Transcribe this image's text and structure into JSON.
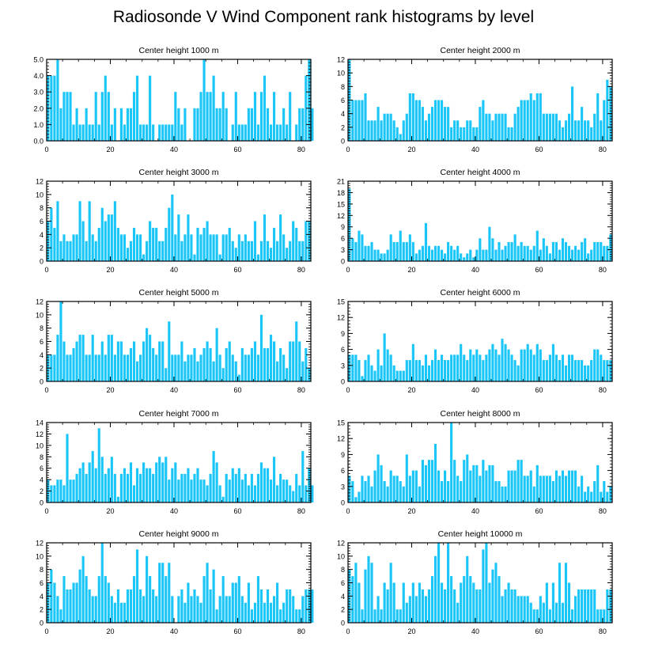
{
  "title": "Radiosonde V Wind Component rank histograms by level",
  "bar_color": "#1ac6f8",
  "chart_data": [
    {
      "type": "bar",
      "title": "Center height 1000 m",
      "xlim": [
        0,
        83
      ],
      "xticks": [
        0,
        20,
        40,
        60,
        80
      ],
      "ylim": [
        0,
        5
      ],
      "yticks": [
        0,
        1,
        2,
        3,
        4,
        5
      ],
      "ytick_labels": [
        "0.0",
        "1.0",
        "2.0",
        "3.0",
        "4.0",
        "5.0"
      ],
      "values": [
        4,
        4,
        4,
        5,
        2,
        3,
        3,
        3,
        1,
        2,
        1,
        1,
        2,
        1,
        1,
        3,
        1,
        3,
        4,
        3,
        1,
        2,
        0,
        2,
        1,
        2,
        2,
        3,
        4,
        1,
        1,
        1,
        4,
        1,
        0,
        1,
        1,
        1,
        1,
        1,
        3,
        2,
        1,
        2,
        0,
        0,
        2,
        2,
        3,
        5,
        3,
        3,
        4,
        2,
        2,
        3,
        2,
        0,
        1,
        3,
        1,
        1,
        1,
        2,
        2,
        3,
        1,
        3,
        4,
        2,
        1,
        3,
        1,
        1,
        2,
        1,
        3,
        0,
        1,
        2,
        2,
        4,
        5,
        2
      ],
      "x": null
    },
    {
      "type": "bar",
      "title": "Center height 2000 m",
      "xlim": [
        0,
        83
      ],
      "xticks": [
        0,
        20,
        40,
        60,
        80
      ],
      "ylim": [
        0,
        12
      ],
      "yticks": [
        0,
        2,
        4,
        6,
        8,
        10,
        12
      ],
      "values": [
        12,
        6,
        6,
        6,
        6,
        7,
        3,
        3,
        3,
        5,
        3,
        4,
        4,
        4,
        3,
        2,
        1,
        3,
        4,
        7,
        7,
        6,
        6,
        5,
        3,
        4,
        5,
        6,
        6,
        6,
        5,
        5,
        2,
        3,
        3,
        2,
        2,
        3,
        3,
        2,
        2,
        5,
        6,
        4,
        4,
        3,
        4,
        4,
        4,
        4,
        2,
        2,
        4,
        5,
        6,
        6,
        6,
        7,
        6,
        7,
        7,
        4,
        4,
        4,
        4,
        4,
        3,
        2,
        3,
        4,
        8,
        3,
        3,
        5,
        3,
        3,
        2,
        4,
        7,
        3,
        6,
        9,
        8
      ],
      "x": null
    },
    {
      "type": "bar",
      "title": "Center height 3000 m",
      "xlim": [
        0,
        83
      ],
      "xticks": [
        0,
        20,
        40,
        60,
        80
      ],
      "ylim": [
        0,
        12
      ],
      "yticks": [
        0,
        2,
        4,
        6,
        8,
        10,
        12
      ],
      "values": [
        6,
        8,
        5,
        9,
        3,
        4,
        3,
        3,
        4,
        4,
        9,
        6,
        3,
        9,
        4,
        3,
        5,
        8,
        6,
        7,
        7,
        9,
        5,
        4,
        4,
        2,
        3,
        5,
        4,
        4,
        1,
        3,
        6,
        5,
        5,
        3,
        3,
        5,
        8,
        10,
        4,
        7,
        3,
        4,
        7,
        4,
        1,
        5,
        4,
        5,
        6,
        4,
        4,
        4,
        1,
        4,
        4,
        5,
        3,
        2,
        4,
        3,
        4,
        3,
        3,
        6,
        1,
        3,
        7,
        3,
        2,
        5,
        3,
        7,
        4,
        2,
        3,
        6,
        5,
        3,
        3,
        6,
        6
      ],
      "x": null
    },
    {
      "type": "bar",
      "title": "Center height 4000 m",
      "xlim": [
        0,
        83
      ],
      "xticks": [
        0,
        20,
        40,
        60,
        80
      ],
      "ylim": [
        0,
        21
      ],
      "yticks": [
        0,
        3,
        6,
        9,
        12,
        15,
        18,
        21
      ],
      "values": [
        19,
        6,
        5,
        8,
        7,
        4,
        4,
        5,
        3,
        3,
        2,
        2,
        3,
        7,
        5,
        5,
        8,
        5,
        5,
        7,
        5,
        2,
        3,
        4,
        10,
        4,
        3,
        4,
        4,
        3,
        2,
        5,
        4,
        3,
        4,
        2,
        1,
        2,
        3,
        1,
        3,
        6,
        3,
        3,
        9,
        6,
        3,
        5,
        3,
        4,
        5,
        5,
        7,
        4,
        5,
        4,
        4,
        3,
        4,
        8,
        3,
        6,
        4,
        2,
        5,
        5,
        3,
        6,
        5,
        4,
        3,
        4,
        3,
        5,
        6,
        2,
        3,
        5,
        5,
        5,
        4,
        4,
        7
      ],
      "x": null
    },
    {
      "type": "bar",
      "title": "Center height 5000 m",
      "xlim": [
        0,
        83
      ],
      "xticks": [
        0,
        20,
        40,
        60,
        80
      ],
      "ylim": [
        0,
        12
      ],
      "yticks": [
        0,
        2,
        4,
        6,
        8,
        10,
        12
      ],
      "values": [
        4,
        4,
        4,
        7,
        12,
        6,
        4,
        4,
        5,
        6,
        7,
        7,
        4,
        4,
        7,
        4,
        4,
        6,
        4,
        7,
        7,
        4,
        6,
        6,
        4,
        4,
        5,
        6,
        3,
        4,
        6,
        8,
        7,
        5,
        4,
        6,
        6,
        2,
        9,
        4,
        4,
        4,
        6,
        3,
        4,
        4,
        5,
        3,
        4,
        5,
        6,
        5,
        3,
        8,
        4,
        2,
        5,
        6,
        4,
        3,
        1,
        5,
        4,
        4,
        5,
        6,
        4,
        10,
        5,
        5,
        7,
        6,
        3,
        5,
        4,
        2,
        6,
        6,
        9,
        6,
        3,
        5,
        2
      ],
      "x": null
    },
    {
      "type": "bar",
      "title": "Center height 6000 m",
      "xlim": [
        0,
        83
      ],
      "xticks": [
        0,
        20,
        40,
        60,
        80
      ],
      "ylim": [
        0,
        15
      ],
      "yticks": [
        0,
        3,
        6,
        9,
        12,
        15
      ],
      "values": [
        5,
        5,
        5,
        4,
        1,
        4,
        5,
        3,
        2,
        6,
        3,
        9,
        6,
        5,
        3,
        2,
        2,
        2,
        4,
        4,
        7,
        4,
        4,
        3,
        5,
        3,
        4,
        6,
        4,
        5,
        4,
        4,
        5,
        5,
        5,
        7,
        5,
        4,
        6,
        5,
        6,
        5,
        4,
        5,
        6,
        7,
        6,
        5,
        8,
        7,
        6,
        5,
        4,
        3,
        6,
        6,
        7,
        6,
        5,
        7,
        6,
        4,
        4,
        5,
        7,
        5,
        4,
        5,
        3,
        5,
        5,
        4,
        4,
        4,
        3,
        3,
        4,
        6,
        6,
        5,
        4,
        4,
        4
      ],
      "x": null
    },
    {
      "type": "bar",
      "title": "Center height 7000 m",
      "xlim": [
        0,
        83
      ],
      "xticks": [
        0,
        20,
        40,
        60,
        80
      ],
      "ylim": [
        0,
        14
      ],
      "yticks": [
        0,
        2,
        4,
        6,
        8,
        10,
        12,
        14
      ],
      "values": [
        4,
        3,
        3,
        4,
        4,
        3,
        12,
        4,
        4,
        5,
        6,
        7,
        5,
        7,
        9,
        6,
        13,
        8,
        5,
        6,
        8,
        5,
        1,
        5,
        6,
        5,
        7,
        3,
        6,
        5,
        7,
        6,
        6,
        5,
        7,
        8,
        7,
        8,
        4,
        6,
        7,
        4,
        5,
        5,
        6,
        4,
        5,
        6,
        4,
        4,
        3,
        5,
        9,
        7,
        3,
        1,
        5,
        4,
        6,
        5,
        6,
        4,
        5,
        3,
        5,
        3,
        5,
        7,
        6,
        6,
        4,
        8,
        3,
        5,
        4,
        4,
        3,
        2,
        5,
        3,
        9,
        3,
        6,
        3
      ],
      "x": null
    },
    {
      "type": "bar",
      "title": "Center height 8000 m",
      "xlim": [
        0,
        83
      ],
      "xticks": [
        0,
        20,
        40,
        60,
        80
      ],
      "ylim": [
        0,
        15
      ],
      "yticks": [
        0,
        3,
        6,
        9,
        12,
        15
      ],
      "values": [
        5,
        4,
        1,
        2,
        5,
        4,
        5,
        3,
        6,
        9,
        7,
        4,
        3,
        6,
        5,
        5,
        4,
        3,
        9,
        5,
        6,
        6,
        3,
        8,
        7,
        8,
        8,
        11,
        6,
        4,
        6,
        4,
        15,
        8,
        5,
        4,
        8,
        9,
        6,
        7,
        7,
        5,
        8,
        6,
        7,
        7,
        4,
        4,
        3,
        3,
        6,
        6,
        6,
        8,
        8,
        5,
        5,
        6,
        3,
        7,
        5,
        5,
        5,
        5,
        4,
        6,
        5,
        6,
        5,
        6,
        6,
        6,
        3,
        5,
        2,
        3,
        2,
        4,
        7,
        2,
        4,
        2,
        3
      ],
      "x": null
    },
    {
      "type": "bar",
      "title": "Center height 9000 m",
      "xlim": [
        0,
        83
      ],
      "xticks": [
        0,
        20,
        40,
        60,
        80
      ],
      "ylim": [
        0,
        12
      ],
      "yticks": [
        0,
        2,
        4,
        6,
        8,
        10,
        12
      ],
      "values": [
        6,
        8,
        6,
        4,
        2,
        7,
        5,
        5,
        6,
        6,
        8,
        10,
        7,
        5,
        4,
        4,
        7,
        12,
        7,
        6,
        4,
        3,
        5,
        3,
        3,
        5,
        5,
        7,
        11,
        5,
        4,
        10,
        7,
        5,
        4,
        9,
        9,
        7,
        9,
        4,
        0,
        4,
        5,
        3,
        6,
        4,
        5,
        4,
        3,
        7,
        9,
        5,
        8,
        2,
        4,
        7,
        4,
        4,
        6,
        6,
        7,
        4,
        3,
        6,
        2,
        3,
        7,
        5,
        3,
        5,
        3,
        4,
        6,
        2,
        3,
        5,
        5,
        4,
        2,
        2,
        4,
        5,
        5,
        5
      ],
      "x": null
    },
    {
      "type": "bar",
      "title": "Center height 10000 m",
      "xlim": [
        0,
        83
      ],
      "xticks": [
        0,
        20,
        40,
        60,
        80
      ],
      "ylim": [
        0,
        12
      ],
      "yticks": [
        0,
        2,
        4,
        6,
        8,
        10,
        12
      ],
      "values": [
        8,
        7,
        9,
        6,
        2,
        8,
        10,
        9,
        2,
        4,
        2,
        6,
        5,
        9,
        6,
        2,
        2,
        6,
        3,
        4,
        6,
        4,
        6,
        5,
        4,
        5,
        7,
        10,
        12,
        6,
        5,
        12,
        7,
        5,
        3,
        6,
        7,
        10,
        7,
        6,
        5,
        5,
        11,
        12,
        6,
        8,
        9,
        7,
        4,
        5,
        6,
        5,
        5,
        4,
        4,
        4,
        4,
        3,
        2,
        2,
        4,
        3,
        6,
        2,
        6,
        3,
        9,
        3,
        9,
        6,
        2,
        4,
        5,
        5,
        5,
        5,
        5,
        5,
        2,
        2,
        2,
        5,
        5
      ],
      "x": null
    }
  ]
}
